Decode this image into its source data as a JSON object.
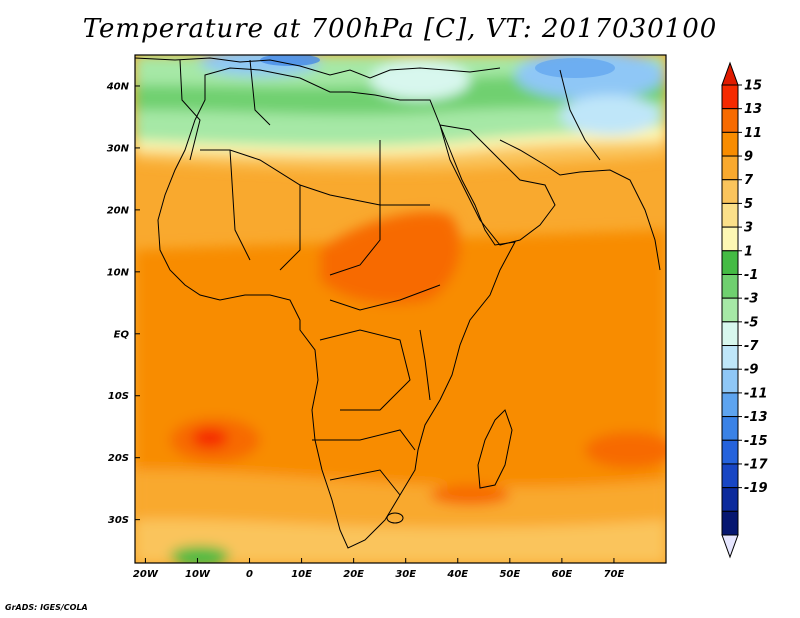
{
  "title": "Temperature at 700hPa [C], VT: 2017030100",
  "credit": "GrADS: IGES/COLA",
  "map": {
    "lon_range": [
      -22,
      80
    ],
    "lat_range": [
      -37,
      45
    ],
    "lat_ticks": [
      "40N",
      "30N",
      "20N",
      "10N",
      "EQ",
      "10S",
      "20S",
      "30S"
    ],
    "lon_ticks": [
      "20W",
      "10W",
      "0",
      "10E",
      "20E",
      "30E",
      "40E",
      "50E",
      "60E",
      "70E"
    ]
  },
  "colorbar": {
    "labels": [
      "15",
      "13",
      "11",
      "9",
      "7",
      "5",
      "3",
      "1",
      "-1",
      "-3",
      "-5",
      "-7",
      "-9",
      "-11",
      "-13",
      "-15",
      "-17",
      "-19"
    ],
    "colors": [
      "#f52a00",
      "#f76b00",
      "#f88c00",
      "#f9a92e",
      "#fac45c",
      "#fbe08a",
      "#fdf7b4",
      "#44bb44",
      "#6fd06f",
      "#a6e8a6",
      "#d8f7ee",
      "#bfe6f9",
      "#8fc7f6",
      "#5ea4ef",
      "#3a82e6",
      "#2563dd",
      "#1846c4",
      "#0c2a9c",
      "#061770"
    ],
    "over_color": "#e01b00",
    "under_color": "#e6e6ff"
  }
}
